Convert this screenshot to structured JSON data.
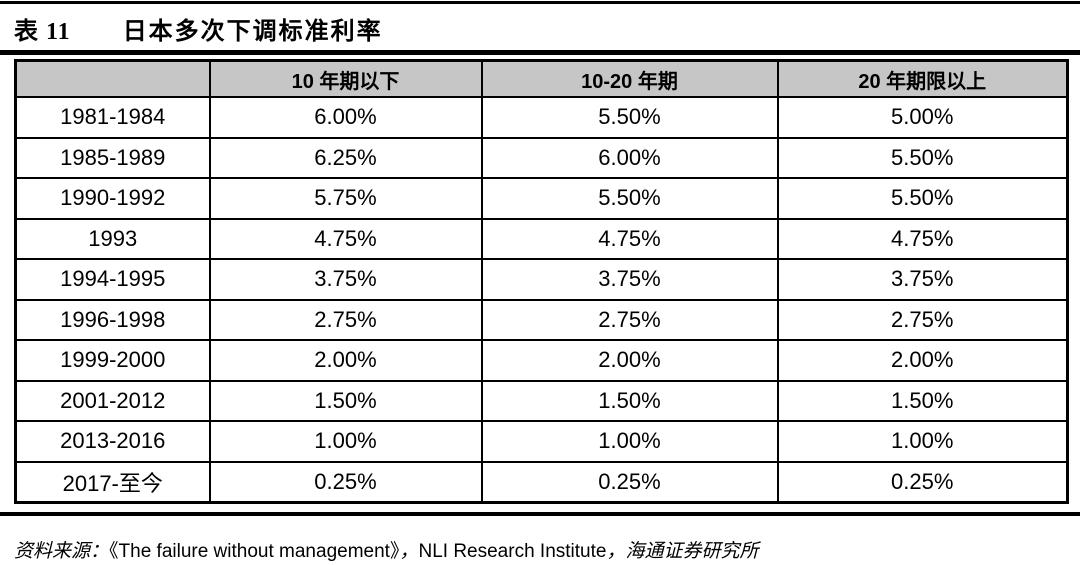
{
  "caption": {
    "label": "表 11",
    "title": "日本多次下调标准利率"
  },
  "table": {
    "columns": [
      "",
      "10 年期以下",
      "10-20 年期",
      "20 年期限以上"
    ],
    "rows": [
      [
        "1981-1984",
        "6.00%",
        "5.50%",
        "5.00%"
      ],
      [
        "1985-1989",
        "6.25%",
        "6.00%",
        "5.50%"
      ],
      [
        "1990-1992",
        "5.75%",
        "5.50%",
        "5.50%"
      ],
      [
        "1993",
        "4.75%",
        "4.75%",
        "4.75%"
      ],
      [
        "1994-1995",
        "3.75%",
        "3.75%",
        "3.75%"
      ],
      [
        "1996-1998",
        "2.75%",
        "2.75%",
        "2.75%"
      ],
      [
        "1999-2000",
        "2.00%",
        "2.00%",
        "2.00%"
      ],
      [
        "2001-2012",
        "1.50%",
        "1.50%",
        "1.50%"
      ],
      [
        "2013-2016",
        "1.00%",
        "1.00%",
        "1.00%"
      ],
      [
        "2017-至今",
        "0.25%",
        "0.25%",
        "0.25%"
      ]
    ]
  },
  "source": {
    "prefix": "资料来源：",
    "book": "《The failure without management》",
    "sep1": "，",
    "institute": "NLI Research Institute",
    "sep2": "，",
    "org": "海通证券研究所"
  },
  "colors": {
    "header_bg": "#C6C6C6",
    "border": "#000000",
    "text": "#000000"
  }
}
